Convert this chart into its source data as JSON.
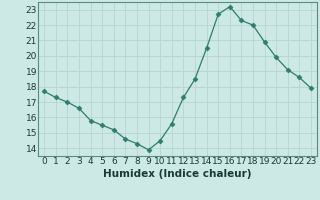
{
  "x": [
    0,
    1,
    2,
    3,
    4,
    5,
    6,
    7,
    8,
    9,
    10,
    11,
    12,
    13,
    14,
    15,
    16,
    17,
    18,
    19,
    20,
    21,
    22,
    23
  ],
  "y": [
    17.7,
    17.3,
    17.0,
    16.6,
    15.8,
    15.5,
    15.2,
    14.6,
    14.3,
    13.9,
    14.5,
    15.6,
    17.3,
    18.5,
    20.5,
    22.7,
    23.2,
    22.3,
    22.0,
    20.9,
    19.9,
    19.1,
    18.6,
    17.9
  ],
  "line_color": "#2e7d6e",
  "marker": "D",
  "marker_size": 2.5,
  "bg_color": "#cce9e5",
  "grid_color": "#b8d4d0",
  "xlabel": "Humidex (Indice chaleur)",
  "xlim": [
    -0.5,
    23.5
  ],
  "ylim": [
    13.5,
    23.5
  ],
  "yticks": [
    14,
    15,
    16,
    17,
    18,
    19,
    20,
    21,
    22,
    23
  ],
  "xticks": [
    0,
    1,
    2,
    3,
    4,
    5,
    6,
    7,
    8,
    9,
    10,
    11,
    12,
    13,
    14,
    15,
    16,
    17,
    18,
    19,
    20,
    21,
    22,
    23
  ],
  "tick_fontsize": 6.5,
  "xlabel_fontsize": 7.5
}
